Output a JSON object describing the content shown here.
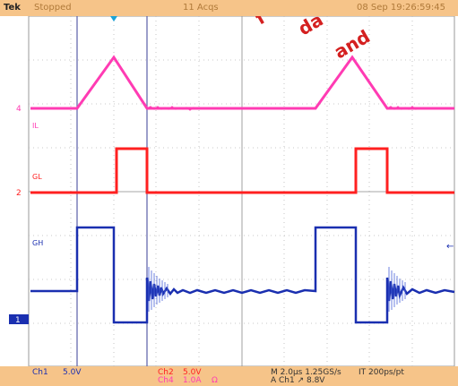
{
  "topbar": {
    "brand": "Tek",
    "status": "Stopped",
    "acqs": "11 Acqs",
    "date": "08 Sep 19:26:59:45"
  },
  "traces": {
    "il_label": "IL",
    "gl_label": "GL",
    "gh_label": "GH",
    "ch4_marker": "4",
    "ch2_marker": "2",
    "ch1_marker": "1"
  },
  "bottombar": {
    "ch1": "Ch1",
    "ch1_scale": "5.0V",
    "ch2": "Ch2",
    "ch2_scale": "5.0V",
    "ch4": "Ch4",
    "ch4_scale": "1.0A",
    "ch4_unit": "Ω",
    "timebase": "M 2.0µs 1.25GS/s",
    "resolution": "IT 200ps/pt",
    "trigger": "A Ch1 ↗ 8.8V"
  },
  "colors": {
    "il": "#ff3bb3",
    "gl": "#ff2020",
    "gh": "#1a2fb0",
    "bar": "#f6c489",
    "watermark": "#d42020"
  },
  "watermark": {
    "line1": "f",
    "line2": "da",
    "line3": "and"
  }
}
